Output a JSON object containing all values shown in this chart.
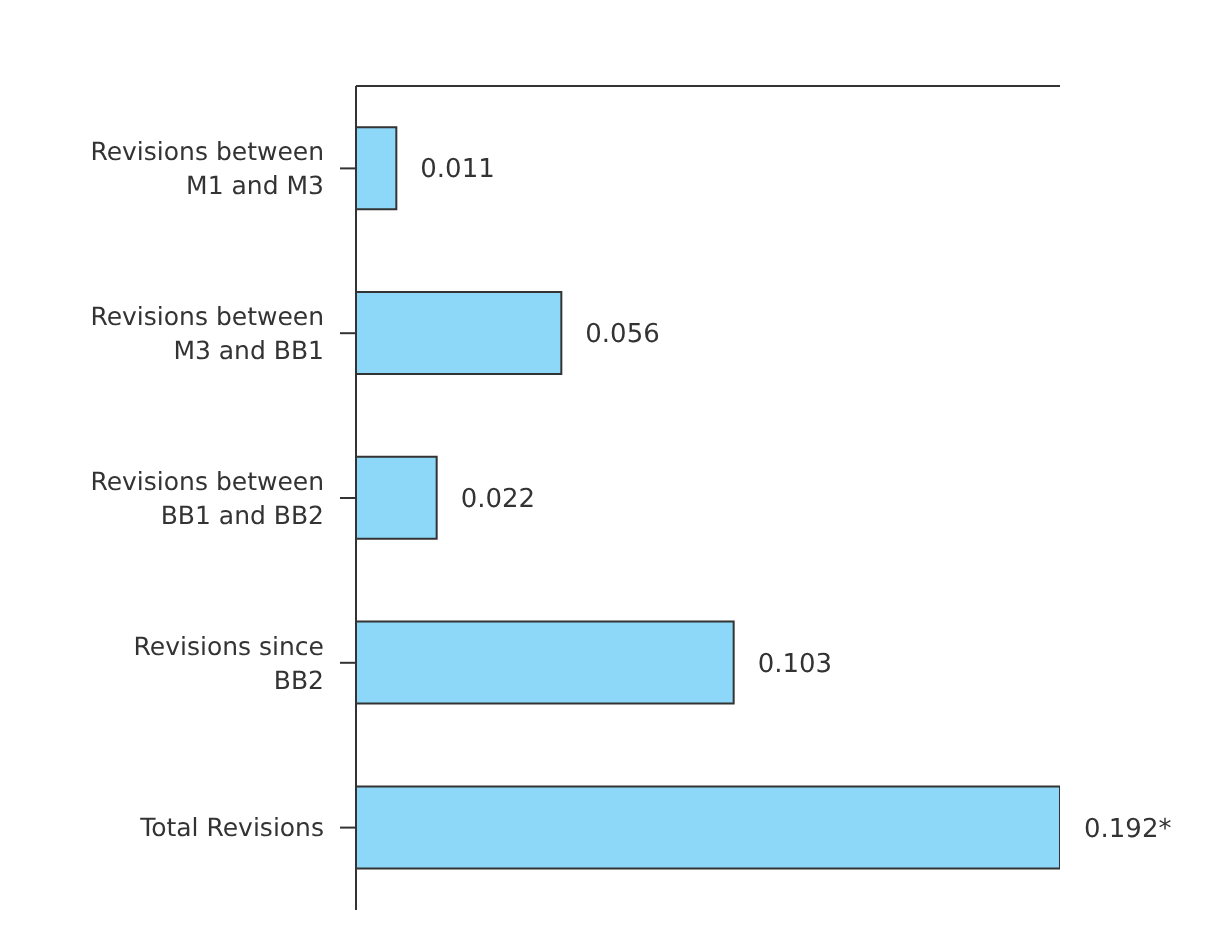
{
  "chart_data": {
    "type": "bar",
    "orientation": "horizontal",
    "categories": [
      "Revisions between M1 and M3",
      "Revisions between M3 and BB1",
      "Revisions between BB1 and BB2",
      "Revisions since BB2",
      "Total Revisions"
    ],
    "values": [
      0.011,
      0.056,
      0.022,
      0.103,
      0.192
    ],
    "color": "#8dd8f8",
    "value_labels": [
      "0.011",
      "0.056",
      "0.022",
      "0.103",
      "0.192*"
    ]
  }
}
